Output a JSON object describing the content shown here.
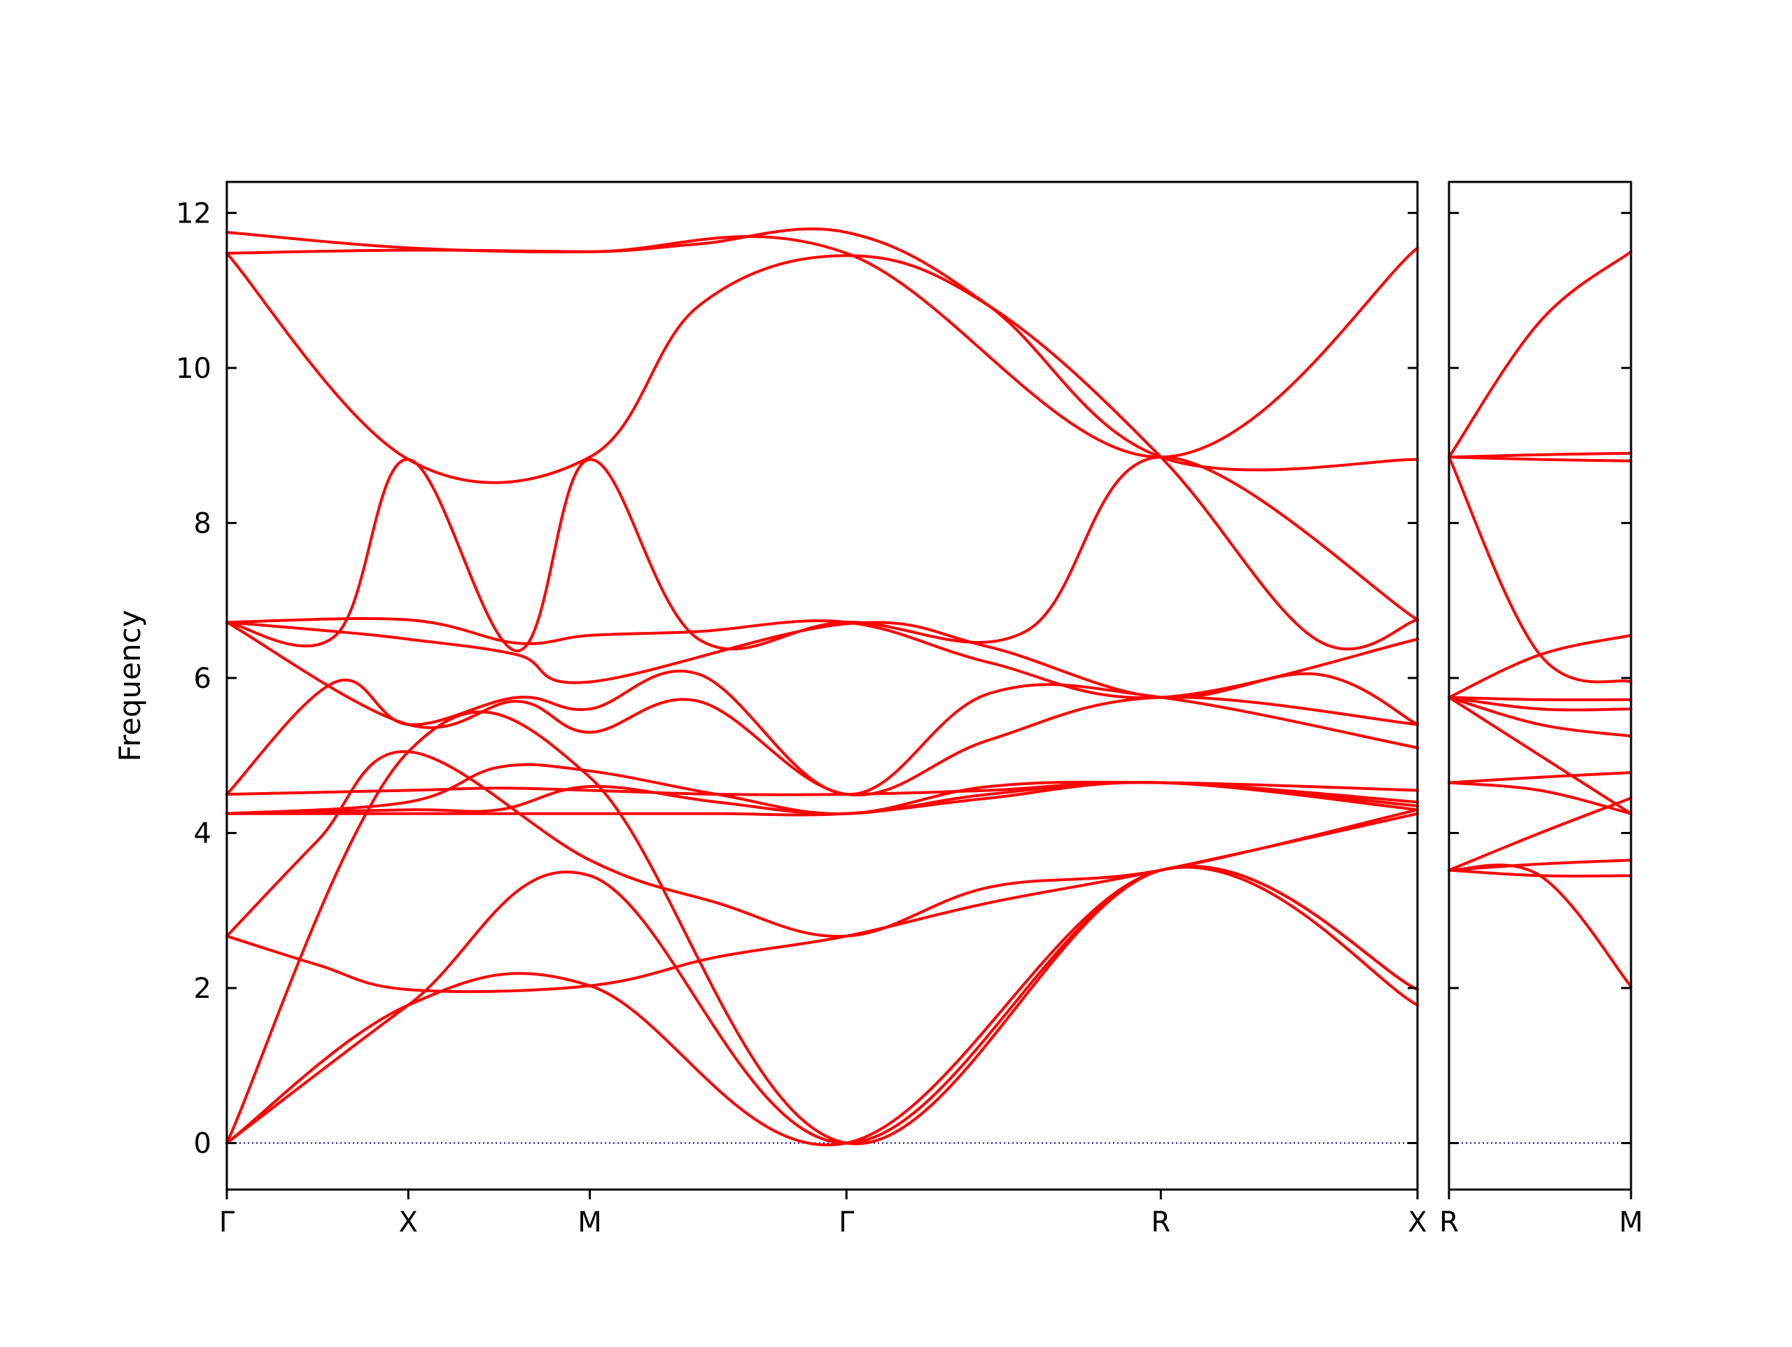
{
  "chart_data": {
    "type": "line",
    "title": "",
    "ylabel": "Frequency",
    "xlabel": "",
    "ylim": [
      -0.6,
      12.4
    ],
    "yticks": [
      0,
      2,
      4,
      6,
      8,
      10,
      12
    ],
    "grid": false,
    "legend": "none",
    "line_color": "#ff0000",
    "zero_line_color": "#0000aa",
    "panels": [
      {
        "id": "main",
        "path_points": [
          {
            "label": "Γ",
            "x": 0.0
          },
          {
            "label": "X",
            "x": 0.5
          },
          {
            "label": "M",
            "x": 1.0
          },
          {
            "label": "Γ",
            "x": 1.7071
          },
          {
            "label": "R",
            "x": 2.5731
          },
          {
            "label": "X",
            "x": 3.2802
          }
        ],
        "xlim": [
          0.0,
          3.2802
        ]
      },
      {
        "id": "side",
        "path_points": [
          {
            "label": "R",
            "x": 0.0
          },
          {
            "label": "M",
            "x": 0.5
          }
        ],
        "xlim": [
          0.0,
          0.5
        ]
      }
    ],
    "series": [
      {
        "panel": "main",
        "x": [
          0,
          0.5,
          1.0,
          1.7071,
          2.5731,
          3.2802
        ],
        "y": [
          0.0,
          1.78,
          2.03,
          0.0,
          3.52,
          1.78
        ]
      },
      {
        "panel": "main",
        "x": [
          0,
          0.5,
          1.0,
          1.7071,
          2.5731,
          3.2802
        ],
        "y": [
          0.0,
          1.78,
          3.45,
          0.0,
          3.52,
          1.98
        ]
      },
      {
        "panel": "main",
        "x": [
          0,
          0.5,
          1.0,
          1.7071,
          2.5731,
          3.2802
        ],
        "y": [
          0.0,
          5.05,
          4.72,
          0.0,
          3.52,
          1.98
        ]
      },
      {
        "panel": "main",
        "x": [
          0,
          0.25,
          0.5,
          1.0,
          1.35,
          1.7071,
          2.1,
          2.5731,
          3.2802
        ],
        "y": [
          2.67,
          2.3,
          1.98,
          2.03,
          2.4,
          2.67,
          3.1,
          3.52,
          4.25
        ]
      },
      {
        "panel": "main",
        "x": [
          0,
          0.25,
          0.5,
          1.0,
          1.35,
          1.7071,
          2.1,
          2.5731,
          3.2802
        ],
        "y": [
          2.67,
          3.9,
          5.05,
          3.65,
          3.1,
          2.67,
          3.3,
          3.52,
          4.3
        ]
      },
      {
        "panel": "main",
        "x": [
          0,
          0.5,
          0.75,
          1.0,
          1.35,
          1.7071,
          2.1,
          2.5731,
          3.2802
        ],
        "y": [
          4.25,
          4.25,
          4.25,
          4.25,
          4.25,
          4.25,
          4.45,
          4.65,
          4.3
        ]
      },
      {
        "panel": "main",
        "x": [
          0,
          0.5,
          0.75,
          1.0,
          1.35,
          1.7071,
          2.1,
          2.5731,
          3.2802
        ],
        "y": [
          4.25,
          4.3,
          4.3,
          4.6,
          4.4,
          4.25,
          4.5,
          4.65,
          4.35
        ]
      },
      {
        "panel": "main",
        "x": [
          0,
          0.5,
          0.75,
          1.0,
          1.35,
          1.7071,
          2.1,
          2.5731,
          3.2802
        ],
        "y": [
          4.25,
          4.4,
          4.85,
          4.8,
          4.5,
          4.25,
          4.6,
          4.65,
          4.55
        ]
      },
      {
        "panel": "main",
        "x": [
          0,
          0.5,
          0.75,
          1.0,
          1.35,
          1.7071,
          2.1,
          2.5731,
          3.2802
        ],
        "y": [
          4.5,
          4.55,
          4.58,
          4.55,
          4.5,
          4.5,
          4.55,
          4.65,
          4.4
        ]
      },
      {
        "panel": "main",
        "x": [
          0,
          0.3,
          0.5,
          0.8,
          1.0,
          1.3,
          1.7071,
          2.1,
          2.5731,
          3.2802
        ],
        "y": [
          4.5,
          5.95,
          5.4,
          5.75,
          5.6,
          6.05,
          4.5,
          5.8,
          5.75,
          5.1
        ]
      },
      {
        "panel": "main",
        "x": [
          0,
          0.5,
          0.8,
          1.0,
          1.3,
          1.7071,
          2.1,
          2.5731,
          3.2802
        ],
        "y": [
          6.72,
          5.4,
          5.7,
          5.3,
          5.7,
          4.5,
          5.2,
          5.75,
          5.4
        ]
      },
      {
        "panel": "main",
        "x": [
          0,
          0.3,
          0.5,
          0.8,
          1.0,
          1.7071,
          2.1,
          2.5731,
          3.0,
          3.2802
        ],
        "y": [
          6.72,
          6.6,
          6.5,
          6.3,
          5.95,
          6.7,
          6.4,
          5.75,
          6.05,
          5.4
        ]
      },
      {
        "panel": "main",
        "x": [
          0,
          0.5,
          0.8,
          1.0,
          1.3,
          1.7071,
          2.1,
          2.5731,
          3.2802
        ],
        "y": [
          6.72,
          6.75,
          6.45,
          6.55,
          6.6,
          6.72,
          6.2,
          5.75,
          6.5
        ]
      },
      {
        "panel": "main",
        "x": [
          0,
          0.3,
          0.5,
          0.8,
          1.0,
          1.3,
          1.7071,
          2.2,
          2.5731,
          3.2802
        ],
        "y": [
          6.72,
          6.55,
          8.82,
          6.35,
          8.82,
          6.5,
          6.72,
          6.6,
          8.85,
          6.75
        ]
      },
      {
        "panel": "main",
        "x": [
          0,
          0.5,
          1.0,
          1.3,
          1.7071,
          2.1,
          2.5731,
          3.0,
          3.2802
        ],
        "y": [
          11.48,
          8.82,
          8.85,
          10.8,
          11.45,
          10.8,
          8.85,
          6.5,
          6.75
        ]
      },
      {
        "panel": "main",
        "x": [
          0,
          0.5,
          1.0,
          1.7071,
          2.5731,
          3.2802
        ],
        "y": [
          11.48,
          11.52,
          11.5,
          11.48,
          8.85,
          11.55
        ]
      },
      {
        "panel": "main",
        "x": [
          0,
          0.5,
          1.0,
          1.3,
          1.7071,
          2.1,
          2.5731,
          3.2802
        ],
        "y": [
          11.75,
          11.55,
          11.5,
          11.6,
          11.75,
          10.8,
          8.85,
          8.82
        ]
      },
      {
        "panel": "side",
        "x": [
          0,
          0.25,
          0.5
        ],
        "y": [
          3.52,
          3.45,
          2.02
        ]
      },
      {
        "panel": "side",
        "x": [
          0,
          0.25,
          0.5
        ],
        "y": [
          3.52,
          3.45,
          3.45
        ]
      },
      {
        "panel": "side",
        "x": [
          0,
          0.25,
          0.5
        ],
        "y": [
          3.52,
          3.6,
          3.65
        ]
      },
      {
        "panel": "side",
        "x": [
          0,
          0.25,
          0.5
        ],
        "y": [
          3.52,
          4.0,
          4.45
        ]
      },
      {
        "panel": "side",
        "x": [
          0,
          0.25,
          0.5
        ],
        "y": [
          4.65,
          4.72,
          4.78
        ]
      },
      {
        "panel": "side",
        "x": [
          0,
          0.25,
          0.5
        ],
        "y": [
          4.65,
          4.55,
          4.25
        ]
      },
      {
        "panel": "side",
        "x": [
          0,
          0.25,
          0.5
        ],
        "y": [
          5.75,
          5.0,
          4.25
        ]
      },
      {
        "panel": "side",
        "x": [
          0,
          0.25,
          0.5
        ],
        "y": [
          5.75,
          5.4,
          5.25
        ]
      },
      {
        "panel": "side",
        "x": [
          0,
          0.25,
          0.5
        ],
        "y": [
          5.75,
          5.6,
          5.6
        ]
      },
      {
        "panel": "side",
        "x": [
          0,
          0.25,
          0.5
        ],
        "y": [
          5.75,
          5.72,
          5.72
        ]
      },
      {
        "panel": "side",
        "x": [
          0,
          0.25,
          0.5
        ],
        "y": [
          5.75,
          6.3,
          6.55
        ]
      },
      {
        "panel": "side",
        "x": [
          0,
          0.25,
          0.5
        ],
        "y": [
          8.85,
          6.3,
          5.95
        ]
      },
      {
        "panel": "side",
        "x": [
          0,
          0.25,
          0.5
        ],
        "y": [
          8.85,
          8.88,
          8.9
        ]
      },
      {
        "panel": "side",
        "x": [
          0,
          0.25,
          0.5
        ],
        "y": [
          8.85,
          8.82,
          8.8
        ]
      },
      {
        "panel": "side",
        "x": [
          0,
          0.25,
          0.5
        ],
        "y": [
          8.85,
          10.6,
          11.5
        ]
      }
    ]
  }
}
